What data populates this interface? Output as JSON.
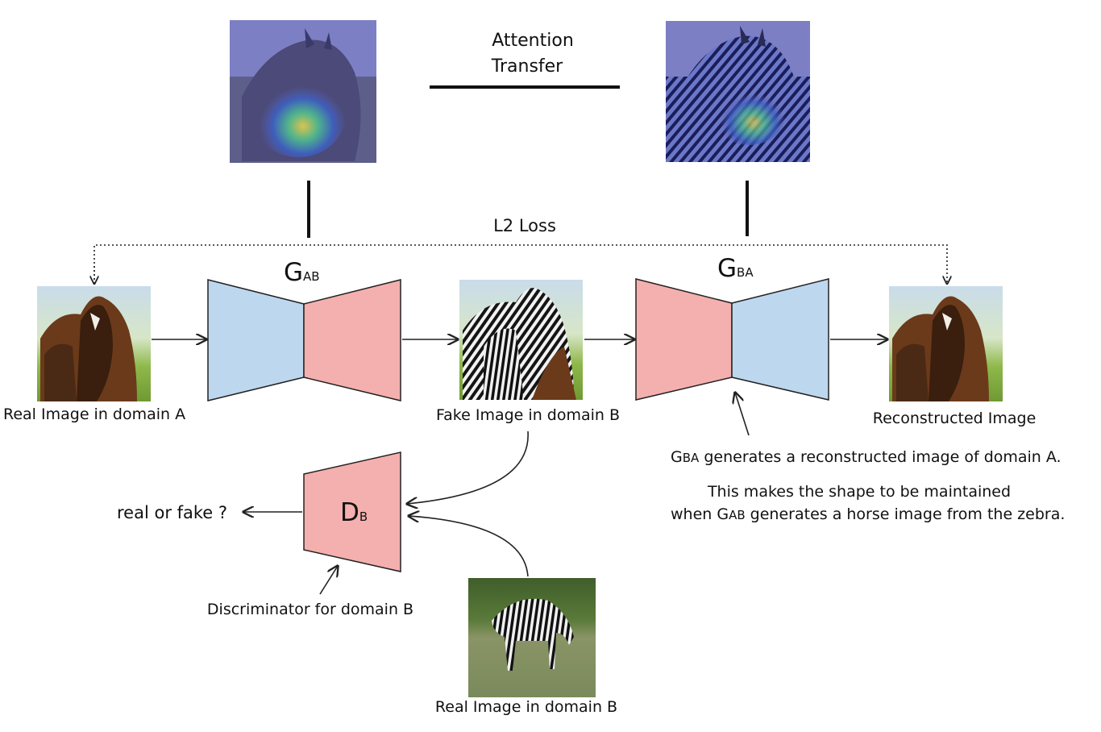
{
  "attention": {
    "line1": "Attention",
    "line2": "Transfer"
  },
  "loss_label": "L2 Loss",
  "generator_ab": {
    "main": "G",
    "sub": "AB"
  },
  "generator_ba": {
    "main": "G",
    "sub": "BA"
  },
  "discriminator": {
    "main": "D",
    "sub": "B"
  },
  "captions": {
    "real_a": "Real Image in domain A",
    "fake_b": "Fake Image in domain B",
    "reconstructed": "Reconstructed Image",
    "real_b": "Real Image in domain B",
    "disc_for_b": "Discriminator for domain B",
    "real_or_fake": "real or fake ?"
  },
  "notes": {
    "line1_g": "G",
    "line1_sub": "BA",
    "line1_rest": " generates a reconstructed image of domain A.",
    "line2": "This makes the shape to be maintained",
    "line3_pre": "when G",
    "line3_sub": "AB",
    "line3_rest": " generates a horse image from the zebra."
  },
  "colors": {
    "encoder_blue": "#bdd7ee",
    "decoder_pink": "#f4b0ae",
    "stroke": "#222222",
    "attention_bg": "#7c7fc4"
  },
  "icons": {
    "horses": "horse-photo-icon",
    "zebras": "zebra-photo-icon",
    "heatmap": "attention-heatmap-icon"
  }
}
